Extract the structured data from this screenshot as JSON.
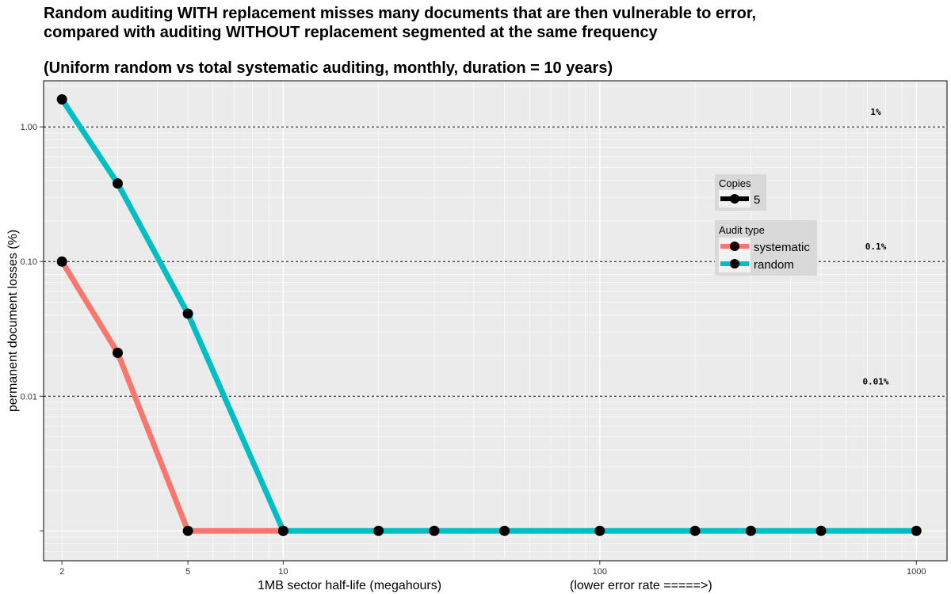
{
  "chart_data": {
    "type": "line",
    "title_lines": [
      "Random auditing WITH replacement misses many documents that are then vulnerable to error,",
      "compared with auditing WITHOUT replacement segmented at the same frequency"
    ],
    "subtitle": "(Uniform random vs total systematic auditing, monthly, duration = 10 years)",
    "xlabel": "1MB sector half-life (megahours)",
    "xlabel_note": "(lower error rate =====>)",
    "ylabel": "permanent document losses (%)",
    "x_scale": "log",
    "y_scale": "log",
    "xlim": [
      1.75,
      1250
    ],
    "ylim": [
      0.0006,
      2.2
    ],
    "x_ticks": [
      {
        "value": 2,
        "label": "2"
      },
      {
        "value": 5,
        "label": "5"
      },
      {
        "value": 10,
        "label": "10"
      },
      {
        "value": 100,
        "label": "100"
      },
      {
        "value": 1000,
        "label": "1000"
      }
    ],
    "y_ticks": [
      {
        "value": 1.0,
        "label": "1.00"
      },
      {
        "value": 0.1,
        "label": "0.10"
      },
      {
        "value": 0.01,
        "label": "0.01"
      },
      {
        "value": 0.001,
        "label": ""
      }
    ],
    "reference_lines": [
      {
        "y": 1.0,
        "label": "1%"
      },
      {
        "y": 0.1,
        "label": "0.1%"
      },
      {
        "y": 0.01,
        "label": "0.01%"
      }
    ],
    "grid": true,
    "legend_placement": "right",
    "legend_copies": {
      "title": "Copies",
      "entries": [
        "5"
      ]
    },
    "legend_audit": {
      "title": "Audit type",
      "entries": [
        "systematic",
        "random"
      ]
    },
    "series": [
      {
        "name": "systematic",
        "color": "#f8766d",
        "x": [
          2,
          3,
          5,
          10
        ],
        "y": [
          0.1,
          0.021,
          0.001,
          0.001
        ]
      },
      {
        "name": "random",
        "color": "#00bfc4",
        "x": [
          2,
          3,
          5,
          10,
          20,
          30,
          50,
          100,
          200,
          300,
          500,
          1000
        ],
        "y": [
          1.6,
          0.38,
          0.041,
          0.001,
          0.001,
          0.001,
          0.001,
          0.001,
          0.001,
          0.001,
          0.001,
          0.001
        ]
      }
    ]
  },
  "colors": {
    "panel_background": "#ebebeb",
    "grid": "#ffffff",
    "legend_background": "#d9d9d9",
    "point": "#000000"
  }
}
